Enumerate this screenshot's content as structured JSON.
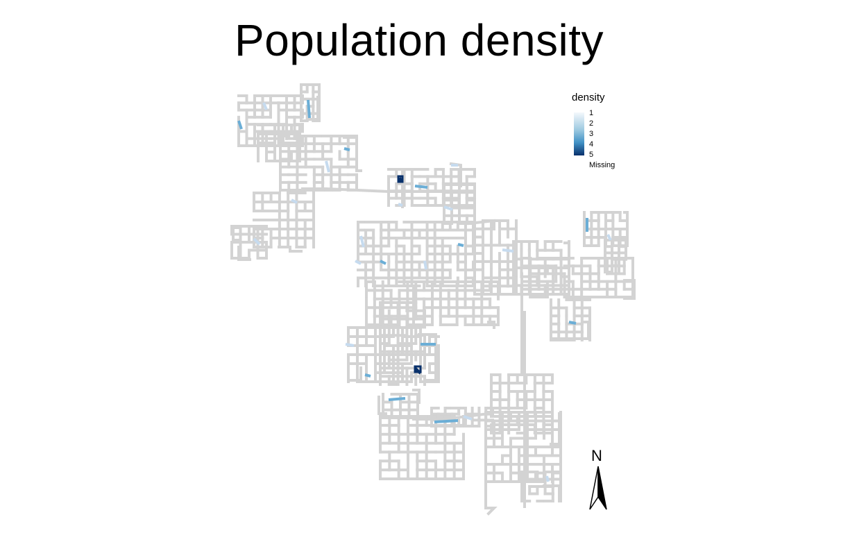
{
  "title": "Population density",
  "legend": {
    "title": "density",
    "ticks": [
      "1",
      "2",
      "3",
      "4",
      "5"
    ],
    "missing_label": "Missing",
    "color_low": "#f4f8fc",
    "color_high": "#08306b"
  },
  "north_label": "N",
  "colors": {
    "street_fill": "#e0e0e0",
    "street_edge": "#c8c8c8",
    "low_density": "#c6dbef",
    "mid_density": "#6baed6",
    "high_density": "#08306b"
  }
}
